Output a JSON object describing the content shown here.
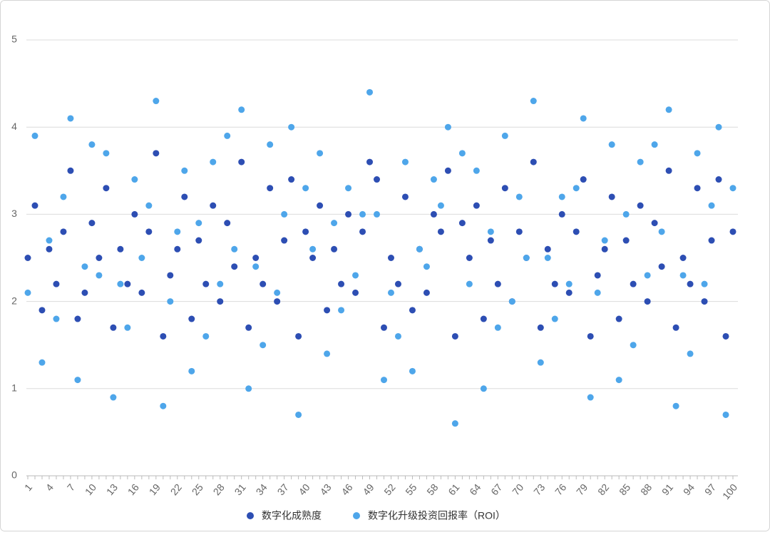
{
  "chart_data": {
    "type": "scatter",
    "categories": [
      "1",
      null,
      null,
      "4",
      null,
      null,
      "7",
      null,
      null,
      "10",
      null,
      null,
      "13",
      null,
      null,
      "16",
      null,
      null,
      "19",
      null,
      null,
      "22",
      null,
      null,
      "25",
      null,
      null,
      "28",
      null,
      null,
      "31",
      null,
      null,
      "34",
      null,
      null,
      "37",
      null,
      null,
      "40",
      null,
      null,
      "43",
      null,
      null,
      "46",
      null,
      null,
      "49",
      null,
      null,
      "52",
      null,
      null,
      "55",
      null,
      null,
      "58",
      null,
      null,
      "61",
      null,
      null,
      "64",
      null,
      null,
      "67",
      null,
      null,
      "70",
      null,
      null,
      "73",
      null,
      null,
      "76",
      null,
      null,
      "79",
      null,
      null,
      "82",
      null,
      null,
      "85",
      null,
      null,
      "88",
      null,
      null,
      "91",
      null,
      null,
      "94",
      null,
      null,
      "97",
      null,
      null,
      "100"
    ],
    "series": [
      {
        "name": "数字化成熟度",
        "color": "#2d4eb3",
        "values": [
          2.5,
          3.1,
          1.9,
          2.6,
          2.2,
          2.8,
          3.5,
          1.8,
          2.1,
          2.9,
          2.5,
          3.3,
          1.7,
          2.6,
          2.2,
          3.0,
          2.1,
          2.8,
          3.7,
          1.6,
          2.3,
          2.6,
          3.2,
          1.8,
          2.7,
          2.2,
          3.1,
          2.0,
          2.9,
          2.4,
          3.6,
          1.7,
          2.5,
          2.2,
          3.3,
          2.0,
          2.7,
          3.4,
          1.6,
          2.8,
          2.5,
          3.1,
          1.9,
          2.6,
          2.2,
          3.0,
          2.1,
          2.8,
          3.6,
          3.4,
          1.7,
          2.5,
          2.2,
          3.2,
          1.9,
          2.6,
          2.1,
          3.0,
          2.8,
          3.5,
          1.6,
          2.9,
          2.5,
          3.1,
          1.8,
          2.7,
          2.2,
          3.3,
          2.0,
          2.8,
          2.5,
          3.6,
          1.7,
          2.6,
          2.2,
          3.0,
          2.1,
          2.8,
          3.4,
          1.6,
          2.3,
          2.6,
          3.2,
          1.8,
          2.7,
          2.2,
          3.1,
          2.0,
          2.9,
          2.4,
          3.5,
          1.7,
          2.5,
          2.2,
          3.3,
          2.0,
          2.7,
          3.4,
          1.6,
          2.8
        ]
      },
      {
        "name": "数字化升级投资回报率（ROI）",
        "color": "#4ea6ea",
        "values": [
          2.1,
          3.9,
          1.3,
          2.7,
          1.8,
          3.2,
          4.1,
          1.1,
          2.4,
          3.8,
          2.3,
          3.7,
          0.9,
          2.2,
          1.7,
          3.4,
          2.5,
          3.1,
          4.3,
          0.8,
          2.0,
          2.8,
          3.5,
          1.2,
          2.9,
          1.6,
          3.6,
          2.2,
          3.9,
          2.6,
          4.2,
          1.0,
          2.4,
          1.5,
          3.8,
          2.1,
          3.0,
          4.0,
          0.7,
          3.3,
          2.6,
          3.7,
          1.4,
          2.9,
          1.9,
          3.3,
          2.3,
          3.0,
          4.4,
          3.0,
          1.1,
          2.1,
          1.6,
          3.6,
          1.2,
          2.6,
          2.4,
          3.4,
          3.1,
          4.0,
          0.6,
          3.7,
          2.2,
          3.5,
          1.0,
          2.8,
          1.7,
          3.9,
          2.0,
          3.2,
          2.5,
          4.3,
          1.3,
          2.5,
          1.8,
          3.2,
          2.2,
          3.3,
          4.1,
          0.9,
          2.1,
          2.7,
          3.8,
          1.1,
          3.0,
          1.5,
          3.6,
          2.3,
          3.8,
          2.8,
          4.2,
          0.8,
          2.3,
          1.4,
          3.7,
          2.2,
          3.1,
          4.0,
          0.7,
          3.3
        ]
      }
    ],
    "ylim": [
      0,
      5
    ],
    "yticks": [
      0,
      1,
      2,
      3,
      4,
      5
    ],
    "grid": true,
    "legend": "bottom"
  }
}
